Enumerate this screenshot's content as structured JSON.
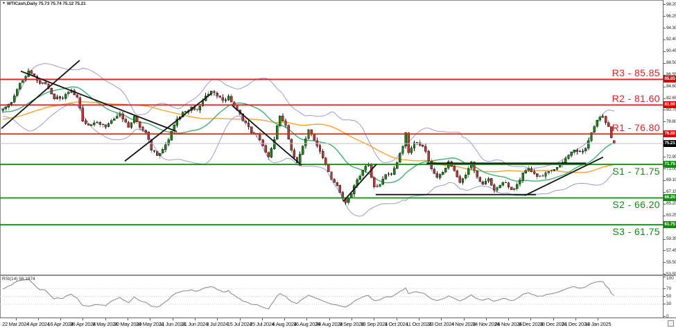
{
  "title": {
    "marker": "▼",
    "symbol": "WTICash,Daily",
    "ohlc": "75.73 75.74 75.12 75.21"
  },
  "colors": {
    "bull": "#128a12",
    "bear": "#c23535",
    "wick": "#1a1a1a",
    "bollinger": "#9b9bd4",
    "ma_fast": "#3cb371",
    "ma_slow": "#ffa226",
    "resistance_line": "#ee1c1c",
    "support_line": "#0a8f0a",
    "resistance_text": "#e62020",
    "support_text": "#0a8f0a",
    "current_price_line": "#c0c0c0",
    "badge_red": "#e00000",
    "badge_black": "#000000",
    "badge_green": "#0a8f0a",
    "trendline": "#111111",
    "rsi_line": "#8f8f8f",
    "rsi_grid": "#cccccc"
  },
  "chart_data": {
    "type": "candlestick",
    "symbol": "WTICash",
    "timeframe": "Daily",
    "title": "WTICash,Daily",
    "last_ohlc": {
      "open": 75.73,
      "high": 75.74,
      "low": 75.12,
      "close": 75.21
    },
    "current_price": 75.21,
    "ylim": [
      53.5,
      99.0
    ],
    "grid": false,
    "bars_visible": 215,
    "pre_bars": 60,
    "levels": [
      {
        "name": "R3",
        "label": "R3 - 85.85",
        "price": 85.85,
        "type": "resistance"
      },
      {
        "name": "R2",
        "label": "R2 - 81.60",
        "price": 81.6,
        "type": "resistance"
      },
      {
        "name": "R1",
        "label": "R1 - 76.80",
        "price": 76.8,
        "type": "resistance"
      },
      {
        "name": "S1",
        "label": "S1 - 71.75",
        "price": 71.75,
        "type": "support"
      },
      {
        "name": "S2",
        "label": "S2 - 66.20",
        "price": 66.2,
        "type": "support"
      },
      {
        "name": "S3",
        "label": "S3 - 61.75",
        "price": 61.75,
        "type": "support"
      }
    ],
    "price_axis": {
      "ticks": [
        "98.20",
        "96.25",
        "94.30",
        "92.40",
        "90.45",
        "88.50",
        "86.55",
        "84.60",
        "82.65",
        "80.75",
        "78.80",
        "72.95",
        "71.00",
        "69.10",
        "67.15",
        "65.20",
        "63.25",
        "61.30",
        "59.35",
        "57.45",
        "55.50",
        "53.55"
      ],
      "badges": [
        {
          "text": "85.85",
          "price": 85.85,
          "bg": "badge_red"
        },
        {
          "text": "81.60",
          "price": 81.6,
          "bg": "badge_red"
        },
        {
          "text": "76.80",
          "price": 76.8,
          "bg": "badge_red"
        },
        {
          "text": "75.21",
          "price": 75.21,
          "bg": "badge_black"
        },
        {
          "text": "71.75",
          "price": 71.75,
          "bg": "badge_green"
        },
        {
          "text": "66.20",
          "price": 66.2,
          "bg": "badge_green"
        },
        {
          "text": "61.75",
          "price": 61.75,
          "bg": "badge_green"
        }
      ]
    },
    "date_axis": [
      "22 Mar 2024",
      "4 Apr 2024",
      "16 Apr 2024",
      "26 Apr 2024",
      "8 May 2024",
      "20 May 2024",
      "30 May 2024",
      "11 Jun 2024",
      "21 Jun 2024",
      "3 Jul 2024",
      "15 Jul 2024",
      "25 Jul 2024",
      "6 Aug 2024",
      "16 Aug 2024",
      "28 Aug 2024",
      "9 Sep 2024",
      "19 Sep 2024",
      "1 Oct 2024",
      "11 Oct 2024",
      "23 Oct 2024",
      "4 Nov 2024",
      "14 Nov 2024",
      "26 Nov 2024",
      "6 Dec 2024",
      "18 Dec 2024",
      "31 Dec 2024",
      "13 Jan 2025"
    ],
    "close_anchors": [
      [
        -60,
        76.5
      ],
      [
        -50,
        78.3
      ],
      [
        -40,
        77.4
      ],
      [
        -32,
        78.6
      ],
      [
        -24,
        80.2
      ],
      [
        -16,
        80.8
      ],
      [
        -8,
        79.9
      ],
      [
        -3,
        80.4
      ],
      [
        0,
        80.9
      ],
      [
        3,
        82.2
      ],
      [
        6,
        85.2
      ],
      [
        9,
        87.2
      ],
      [
        12,
        85.6
      ],
      [
        15,
        84.9
      ],
      [
        18,
        82.7
      ],
      [
        21,
        82.9
      ],
      [
        24,
        83.9
      ],
      [
        26,
        82.7
      ],
      [
        28,
        79.1
      ],
      [
        30,
        78.2
      ],
      [
        33,
        78.7
      ],
      [
        36,
        78.1
      ],
      [
        39,
        79.3
      ],
      [
        41,
        80.0
      ],
      [
        44,
        77.9
      ],
      [
        46,
        79.6
      ],
      [
        48,
        77.9
      ],
      [
        50,
        77.1
      ],
      [
        52,
        74.3
      ],
      [
        54,
        73.3
      ],
      [
        56,
        74.1
      ],
      [
        58,
        75.7
      ],
      [
        60,
        78.5
      ],
      [
        63,
        80.3
      ],
      [
        66,
        81.1
      ],
      [
        68,
        80.9
      ],
      [
        71,
        82.9
      ],
      [
        73,
        83.8
      ],
      [
        75,
        83.1
      ],
      [
        77,
        82.3
      ],
      [
        79,
        83.0
      ],
      [
        81,
        81.4
      ],
      [
        83,
        79.9
      ],
      [
        85,
        78.5
      ],
      [
        87,
        77.1
      ],
      [
        89,
        76.9
      ],
      [
        91,
        74.7
      ],
      [
        93,
        73.1
      ],
      [
        95,
        76.1
      ],
      [
        97,
        79.9
      ],
      [
        99,
        78.1
      ],
      [
        101,
        74.1
      ],
      [
        103,
        71.9
      ],
      [
        105,
        75.0
      ],
      [
        107,
        77.4
      ],
      [
        109,
        75.9
      ],
      [
        111,
        74.1
      ],
      [
        113,
        71.6
      ],
      [
        115,
        69.3
      ],
      [
        117,
        68.1
      ],
      [
        119,
        66.1
      ],
      [
        120,
        65.6
      ],
      [
        122,
        67.1
      ],
      [
        124,
        69.2
      ],
      [
        126,
        70.9
      ],
      [
        128,
        71.7
      ],
      [
        130,
        67.9
      ],
      [
        132,
        68.5
      ],
      [
        134,
        70.2
      ],
      [
        136,
        70.0
      ],
      [
        138,
        72.1
      ],
      [
        140,
        74.7
      ],
      [
        141,
        77.1
      ],
      [
        142,
        73.9
      ],
      [
        144,
        75.4
      ],
      [
        146,
        75.1
      ],
      [
        148,
        74.0
      ],
      [
        150,
        70.8
      ],
      [
        152,
        69.4
      ],
      [
        154,
        70.4
      ],
      [
        156,
        72.1
      ],
      [
        158,
        70.9
      ],
      [
        160,
        68.6
      ],
      [
        162,
        70.1
      ],
      [
        164,
        72.2
      ],
      [
        166,
        69.6
      ],
      [
        168,
        68.6
      ],
      [
        170,
        69.4
      ],
      [
        172,
        67.6
      ],
      [
        174,
        68.3
      ],
      [
        176,
        68.9
      ],
      [
        178,
        67.4
      ],
      [
        180,
        68.5
      ],
      [
        182,
        70.2
      ],
      [
        184,
        71.2
      ],
      [
        186,
        70.1
      ],
      [
        188,
        69.7
      ],
      [
        190,
        70.2
      ],
      [
        192,
        70.8
      ],
      [
        194,
        71.3
      ],
      [
        196,
        72.0
      ],
      [
        198,
        73.3
      ],
      [
        200,
        74.1
      ],
      [
        202,
        73.6
      ],
      [
        204,
        74.5
      ],
      [
        206,
        76.9
      ],
      [
        208,
        79.0
      ],
      [
        210,
        79.9
      ],
      [
        211,
        78.7
      ],
      [
        212,
        77.9
      ],
      [
        213,
        76.3
      ],
      [
        214,
        75.21
      ]
    ],
    "trendlines": [
      [
        -0.5,
        77.7,
        26.9,
        89.0
      ],
      [
        6.3,
        87.2,
        60.9,
        77.2
      ],
      [
        42.7,
        72.3,
        73.0,
        83.5
      ],
      [
        80.3,
        81.5,
        104.6,
        71.6
      ],
      [
        119.1,
        65.6,
        130.8,
        71.8
      ],
      [
        148.3,
        71.95,
        204.1,
        71.95
      ],
      [
        130.5,
        66.75,
        186.6,
        66.75
      ],
      [
        182.7,
        66.6,
        210.1,
        72.95
      ]
    ],
    "indicators": {
      "bollinger": {
        "period": 20,
        "deviation": 2
      },
      "ma_fast": {
        "period": 21
      },
      "ma_slow": {
        "period": 55
      },
      "rsi": {
        "label": "RSI(14)",
        "value": "56.1974",
        "period": 14,
        "levels": [
          70,
          50,
          30
        ],
        "axis_labels": [
          "100",
          "70",
          "50",
          "30",
          "0"
        ],
        "axis_values": [
          100,
          70,
          50,
          30,
          0
        ]
      }
    }
  }
}
